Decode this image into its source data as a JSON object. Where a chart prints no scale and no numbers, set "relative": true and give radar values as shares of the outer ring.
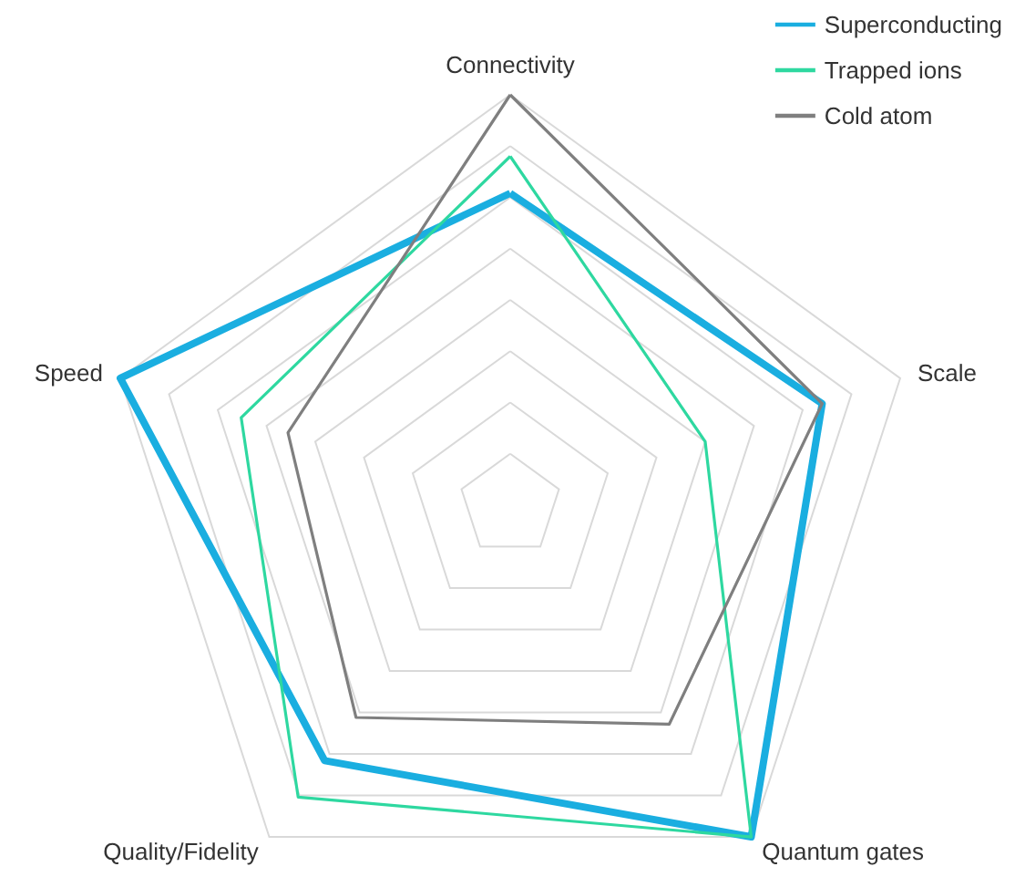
{
  "chart_data": {
    "type": "radar",
    "relative": true,
    "categories": [
      "Connectivity",
      "Scale",
      "Quantum gates",
      "Quality/Fidelity",
      "Speed"
    ],
    "series": [
      {
        "name": "Superconducting",
        "color": "#1aaee0",
        "values": [
          0.76,
          0.8,
          1.0,
          0.77,
          1.0
        ]
      },
      {
        "name": "Trapped ions",
        "color": "#2ed8a0",
        "values": [
          0.85,
          0.5,
          1.0,
          0.88,
          0.69
        ]
      },
      {
        "name": "Cold atom",
        "color": "#7f7f7f",
        "values": [
          1.0,
          0.8,
          0.66,
          0.64,
          0.57
        ]
      }
    ],
    "legend": "top right",
    "marker": "none"
  }
}
